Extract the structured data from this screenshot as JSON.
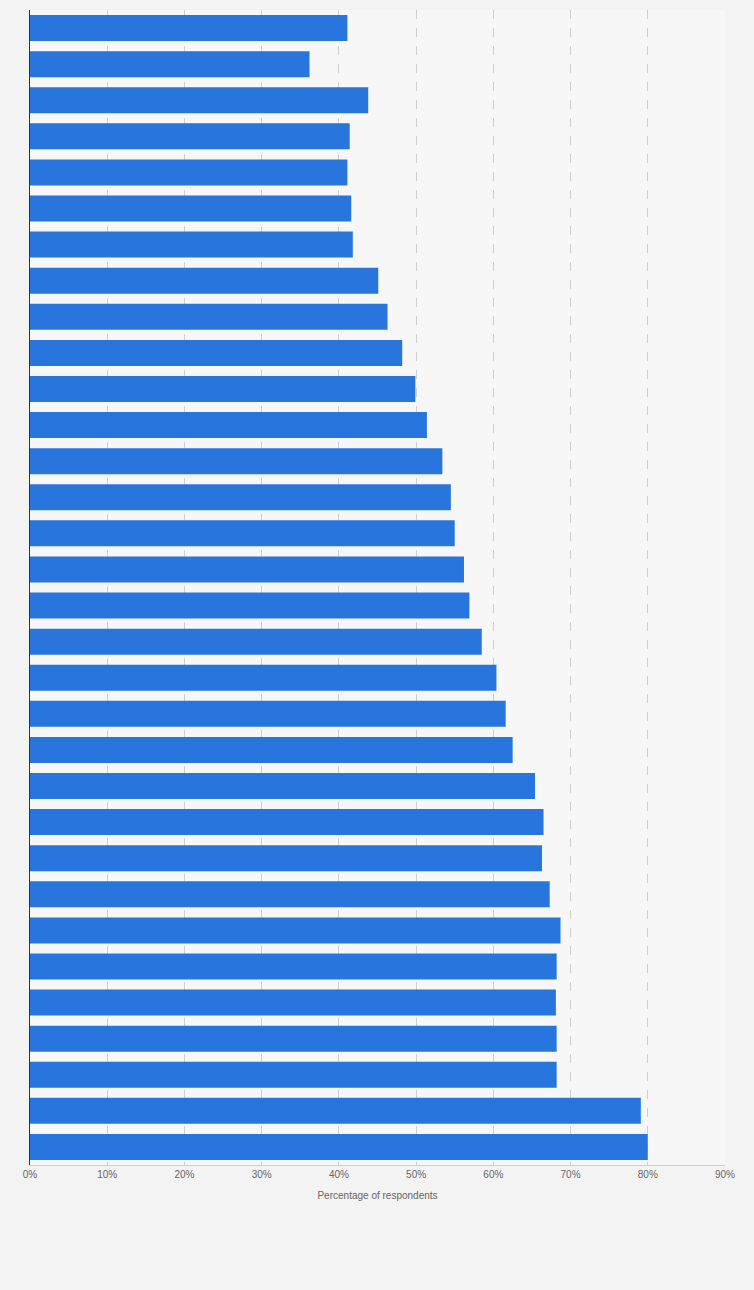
{
  "chart_data": {
    "type": "bar",
    "orientation": "horizontal",
    "xlabel": "Percentage of respondents",
    "categories": [
      null,
      null,
      null,
      null,
      null,
      null,
      null,
      null,
      null,
      null,
      null,
      null,
      null,
      null,
      null,
      null,
      null,
      null,
      null,
      null,
      null,
      null,
      null,
      null,
      null,
      null,
      null,
      null,
      null,
      null,
      null,
      null
    ],
    "values": [
      41.1,
      36.2,
      43.8,
      41.4,
      41.1,
      41.6,
      41.8,
      45.1,
      46.3,
      48.2,
      49.9,
      51.4,
      53.4,
      54.5,
      55.0,
      56.2,
      56.9,
      58.5,
      60.4,
      61.6,
      62.5,
      65.4,
      66.5,
      66.3,
      67.3,
      68.7,
      68.2,
      68.1,
      68.2,
      68.2,
      79.1,
      80.0
    ],
    "color": "#2876dd",
    "xlim": [
      0,
      90
    ],
    "xticks": [
      {
        "value": 0,
        "label": "0%"
      },
      {
        "value": 10,
        "label": "10%"
      },
      {
        "value": 20,
        "label": "20%"
      },
      {
        "value": 30,
        "label": "30%"
      },
      {
        "value": 40,
        "label": "40%"
      },
      {
        "value": 50,
        "label": "50%"
      },
      {
        "value": 60,
        "label": "60%"
      },
      {
        "value": 70,
        "label": "70%"
      },
      {
        "value": 80,
        "label": "80%"
      },
      {
        "value": 90,
        "label": "90%"
      }
    ],
    "grid": true,
    "tick_labels": "x"
  }
}
